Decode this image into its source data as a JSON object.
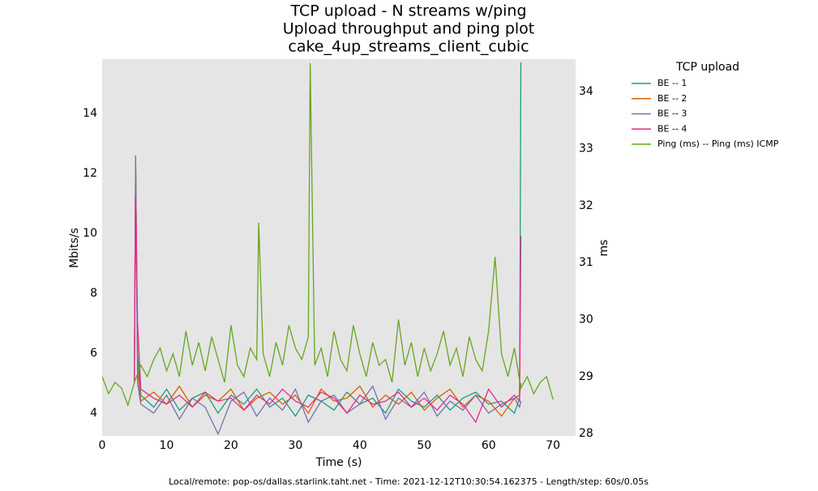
{
  "chart_data": {
    "type": "line",
    "title": [
      "TCP upload - N streams w/ping",
      "Upload throughput and ping plot",
      "cake_4up_streams_client_cubic"
    ],
    "x_label": "Time (s)",
    "y_label": "Mbits/s",
    "y2_label": "ms",
    "legend_title": "TCP upload",
    "legend": "outside-right",
    "footer": "Local/remote: pop-os/dallas.starlink.taht.net - Time: 2021-12-12T10:30:54.162375 - Length/step: 60s/0.05s",
    "xlim": [
      0,
      73.5
    ],
    "ylim": [
      3.24,
      15.81
    ],
    "y2lim": [
      27.96,
      34.57
    ],
    "xticks": [
      0,
      10,
      20,
      30,
      40,
      50,
      60,
      70
    ],
    "yticks": [
      4,
      6,
      8,
      10,
      12,
      14
    ],
    "y2ticks": [
      28,
      29,
      30,
      31,
      32,
      33,
      34
    ],
    "x": [
      5,
      5.2,
      5.5,
      6,
      8,
      10,
      12,
      14,
      16,
      18,
      20,
      22,
      24,
      26,
      28,
      30,
      32,
      34,
      36,
      38,
      40,
      42,
      44,
      46,
      48,
      50,
      52,
      54,
      56,
      58,
      60,
      62,
      64,
      64.8,
      65
    ],
    "series": [
      {
        "name": "BE -- 1",
        "color": "#1b9e77",
        "values": [
          5.0,
          12.4,
          6.0,
          4.6,
          4.2,
          4.8,
          4.1,
          4.5,
          4.7,
          4.0,
          4.6,
          4.3,
          4.8,
          4.2,
          4.5,
          3.9,
          4.6,
          4.4,
          4.1,
          4.7,
          4.3,
          4.5,
          4.0,
          4.8,
          4.4,
          4.2,
          4.6,
          4.1,
          4.5,
          4.7,
          4.3,
          4.4,
          4.0,
          4.5,
          15.7
        ]
      },
      {
        "name": "BE -- 2",
        "color": "#d95f02",
        "values": [
          5.0,
          12.6,
          5.5,
          4.4,
          4.7,
          4.3,
          4.9,
          4.2,
          4.6,
          4.4,
          4.8,
          4.1,
          4.5,
          4.7,
          4.3,
          4.6,
          4.0,
          4.8,
          4.4,
          4.5,
          4.9,
          4.2,
          4.6,
          4.3,
          4.7,
          4.1,
          4.5,
          4.8,
          4.2,
          4.6,
          4.4,
          3.9,
          4.5,
          4.6,
          5.0
        ]
      },
      {
        "name": "BE -- 3",
        "color": "#7570b3",
        "values": [
          5.0,
          12.5,
          5.0,
          4.3,
          4.0,
          4.6,
          3.8,
          4.5,
          4.2,
          3.3,
          4.4,
          4.7,
          3.9,
          4.5,
          4.1,
          4.8,
          3.7,
          4.4,
          4.6,
          4.0,
          4.3,
          4.9,
          3.8,
          4.5,
          4.2,
          4.7,
          3.9,
          4.4,
          4.1,
          4.6,
          4.0,
          4.3,
          4.5,
          4.2,
          4.4
        ]
      },
      {
        "name": "BE -- 4",
        "color": "#e7298a",
        "values": [
          5.0,
          11.2,
          7.0,
          4.8,
          4.5,
          4.3,
          4.6,
          4.2,
          4.7,
          4.4,
          4.5,
          4.1,
          4.6,
          4.3,
          4.8,
          4.4,
          4.2,
          4.7,
          4.5,
          4.0,
          4.6,
          4.3,
          4.4,
          4.7,
          4.2,
          4.5,
          4.1,
          4.6,
          4.3,
          3.7,
          4.8,
          4.2,
          4.6,
          4.4,
          9.9
        ]
      },
      {
        "name": "Ping (ms) -- Ping (ms) ICMP",
        "color": "#66a61e",
        "axis": "y2",
        "x": [
          0,
          1,
          2,
          3,
          4,
          5,
          6,
          7,
          8,
          9,
          10,
          11,
          12,
          13,
          14,
          15,
          16,
          17,
          18,
          19,
          20,
          21,
          22,
          23,
          24,
          24.3,
          25,
          26,
          27,
          28,
          29,
          30,
          31,
          32,
          32.3,
          33,
          34,
          35,
          36,
          37,
          38,
          39,
          40,
          41,
          42,
          43,
          44,
          45,
          46,
          47,
          48,
          49,
          50,
          51,
          52,
          53,
          54,
          55,
          56,
          57,
          58,
          59,
          60,
          61,
          62,
          63,
          64,
          65,
          66,
          67,
          68,
          69,
          70
        ],
        "values": [
          29.0,
          28.7,
          28.9,
          28.8,
          28.5,
          28.9,
          29.2,
          29.0,
          29.3,
          29.5,
          29.1,
          29.4,
          29.0,
          29.8,
          29.2,
          29.6,
          29.1,
          29.7,
          29.3,
          28.9,
          29.9,
          29.2,
          29.0,
          29.5,
          29.3,
          31.7,
          29.4,
          29.0,
          29.6,
          29.2,
          29.9,
          29.5,
          29.3,
          29.7,
          34.5,
          29.2,
          29.5,
          29.0,
          29.8,
          29.3,
          29.1,
          29.9,
          29.4,
          29.0,
          29.6,
          29.2,
          29.3,
          28.9,
          30.0,
          29.2,
          29.6,
          29.0,
          29.5,
          29.1,
          29.4,
          29.8,
          29.2,
          29.5,
          29.0,
          29.7,
          29.3,
          29.1,
          29.8,
          31.1,
          29.4,
          29.0,
          29.5,
          28.8,
          29.0,
          28.7,
          28.9,
          29.0,
          28.6
        ]
      }
    ]
  }
}
